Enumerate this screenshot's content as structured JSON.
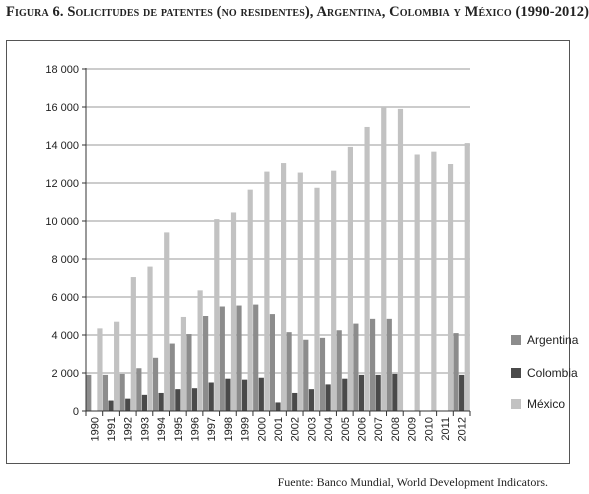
{
  "title": "Figura 6. Solicitudes de patentes (no residentes), Argentina, Colombia y México (1990-2012)",
  "source": "Fuente: Banco Mundial, World Development Indicators.",
  "chart_data": {
    "type": "bar",
    "title": "Figura 6. Solicitudes de patentes (no residentes), Argentina, Colombia y México (1990-2012)",
    "xlabel": "",
    "ylabel": "",
    "ylim": [
      0,
      18000
    ],
    "yticks": [
      0,
      2000,
      4000,
      6000,
      8000,
      10000,
      12000,
      14000,
      16000,
      18000
    ],
    "ytick_labels": [
      "0",
      "2 000",
      "4 000",
      "6 000",
      "8 000",
      "10 000",
      "12 000",
      "14 000",
      "16 000",
      "18 000"
    ],
    "grid": true,
    "legend_position": "right",
    "categories": [
      "1990",
      "1991",
      "1992",
      "1993",
      "1994",
      "1995",
      "1996",
      "1997",
      "1998",
      "1999",
      "2000",
      "2001",
      "2002",
      "2003",
      "2004",
      "2005",
      "2006",
      "2007",
      "2008",
      "2009",
      "2010",
      "2011",
      "2012"
    ],
    "series": [
      {
        "name": "Argentina",
        "color": "#8c8c8c",
        "values": [
          1900,
          1900,
          1950,
          2250,
          2800,
          3550,
          4050,
          5000,
          5500,
          5550,
          5600,
          5100,
          4150,
          3750,
          3850,
          4250,
          4600,
          4850,
          4850,
          0,
          0,
          0,
          4100
        ]
      },
      {
        "name": "Colombia",
        "color": "#4a4a4a",
        "values": [
          0,
          550,
          650,
          850,
          950,
          1150,
          1200,
          1500,
          1700,
          1650,
          1750,
          450,
          950,
          1150,
          1400,
          1700,
          1900,
          1900,
          1950,
          0,
          0,
          0,
          1900
        ]
      },
      {
        "name": "México",
        "color": "#c2c2c2",
        "values": [
          4350,
          4700,
          7050,
          7600,
          9400,
          4950,
          6350,
          10100,
          10450,
          11650,
          12600,
          13050,
          12550,
          11750,
          12650,
          13900,
          14950,
          16000,
          15900,
          13500,
          13650,
          13000,
          14100
        ]
      }
    ]
  }
}
